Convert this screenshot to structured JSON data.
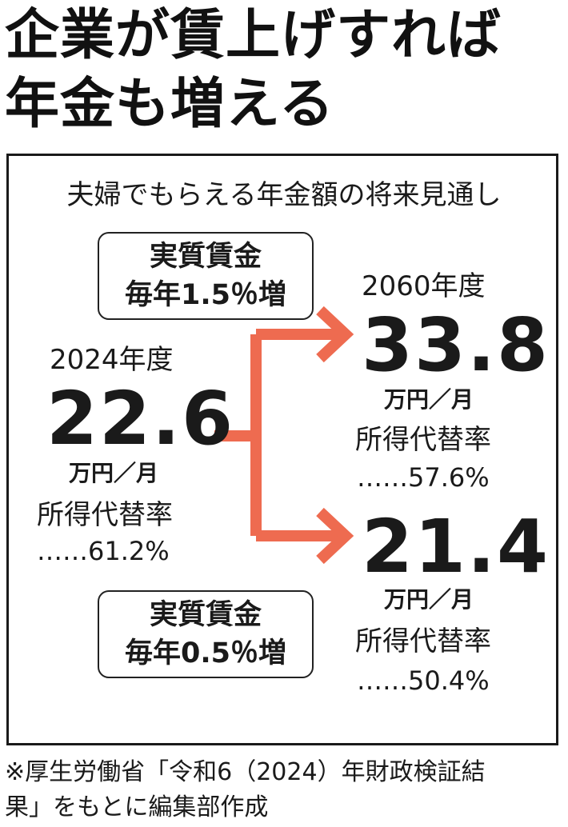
{
  "headline": [
    "企業が賃上げすれば",
    "年金も増える"
  ],
  "subtitle": "夫婦でもらえる年金額の将来見通し",
  "accent_color": "#ee6b50",
  "wage_high": {
    "line1": "実質賃金",
    "line2": "毎年1.5％増"
  },
  "wage_low": {
    "line1": "実質賃金",
    "line2": "毎年0.5％増"
  },
  "current": {
    "year": "2024年度",
    "amount": "22.6",
    "unit": "万円／月",
    "rate_label": "所得代替率",
    "rate_value": "……61.2%"
  },
  "future_label": "2060年度",
  "future_high": {
    "amount": "33.8",
    "unit": "万円／月",
    "rate_label": "所得代替率",
    "rate_value": "……57.6%"
  },
  "future_low": {
    "amount": "21.4",
    "unit": "万円／月",
    "rate_label": "所得代替率",
    "rate_value": "……50.4%"
  },
  "footnote": [
    "※厚生労働省「令和6（2024）年財政検証結",
    "果」をもとに編集部作成"
  ]
}
